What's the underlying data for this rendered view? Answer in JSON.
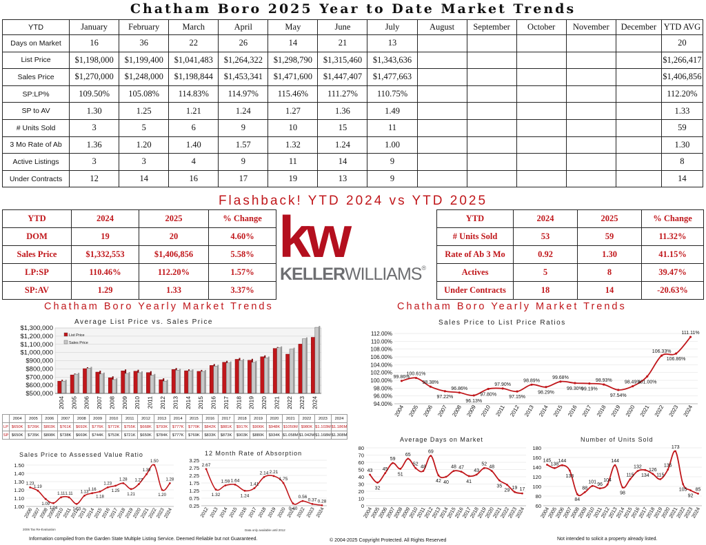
{
  "title": "Chatham Boro 2025 Year to Date Market Trends",
  "ytd_table": {
    "headers": [
      "YTD",
      "January",
      "February",
      "March",
      "April",
      "May",
      "June",
      "July",
      "August",
      "September",
      "October",
      "November",
      "December",
      "YTD AVG"
    ],
    "rows": [
      {
        "label": "Days on Market",
        "values": [
          "16",
          "36",
          "22",
          "26",
          "14",
          "21",
          "13",
          "",
          "",
          "",
          "",
          "",
          "20"
        ]
      },
      {
        "label": "List Price",
        "values": [
          "$1,198,000",
          "$1,199,400",
          "$1,041,483",
          "$1,264,322",
          "$1,298,790",
          "$1,315,460",
          "$1,343,636",
          "",
          "",
          "",
          "",
          "",
          "$1,266,417"
        ]
      },
      {
        "label": "Sales Price",
        "values": [
          "$1,270,000",
          "$1,248,000",
          "$1,198,844",
          "$1,453,341",
          "$1,471,600",
          "$1,447,407",
          "$1,477,663",
          "",
          "",
          "",
          "",
          "",
          "$1,406,856"
        ]
      },
      {
        "label": "SP:LP%",
        "values": [
          "109.50%",
          "105.08%",
          "114.83%",
          "114.97%",
          "115.46%",
          "111.27%",
          "110.75%",
          "",
          "",
          "",
          "",
          "",
          "112.20%"
        ]
      },
      {
        "label": "SP to AV",
        "values": [
          "1.30",
          "1.25",
          "1.21",
          "1.24",
          "1.27",
          "1.36",
          "1.49",
          "",
          "",
          "",
          "",
          "",
          "1.33"
        ]
      },
      {
        "label": "# Units Sold",
        "values": [
          "3",
          "5",
          "6",
          "9",
          "10",
          "15",
          "11",
          "",
          "",
          "",
          "",
          "",
          "59"
        ]
      },
      {
        "label": "3 Mo Rate of Ab",
        "values": [
          "1.36",
          "1.20",
          "1.40",
          "1.57",
          "1.32",
          "1.24",
          "1.00",
          "",
          "",
          "",
          "",
          "",
          "1.30"
        ]
      },
      {
        "label": "Active Listings",
        "values": [
          "3",
          "3",
          "4",
          "9",
          "11",
          "14",
          "9",
          "",
          "",
          "",
          "",
          "",
          "8"
        ]
      },
      {
        "label": "Under Contracts",
        "values": [
          "12",
          "14",
          "16",
          "17",
          "19",
          "13",
          "9",
          "",
          "",
          "",
          "",
          "",
          "14"
        ]
      }
    ]
  },
  "flashback": {
    "title": "Flashback!  YTD 2024 vs YTD 2025",
    "left": {
      "headers": [
        "YTD",
        "2024",
        "2025",
        "% Change"
      ],
      "rows": [
        [
          "DOM",
          "19",
          "20",
          "4.60%"
        ],
        [
          "Sales Price",
          "$1,332,553",
          "$1,406,856",
          "5.58%"
        ],
        [
          "LP:SP",
          "110.46%",
          "112.20%",
          "1.57%"
        ],
        [
          "SP:AV",
          "1.29",
          "1.33",
          "3.37%"
        ]
      ]
    },
    "right": {
      "headers": [
        "YTD",
        "2024",
        "2025",
        "% Change"
      ],
      "rows": [
        [
          "# Units Sold",
          "53",
          "59",
          "11.32%"
        ],
        [
          "Rate of Ab 3 Mo",
          "0.92",
          "1.30",
          "41.15%"
        ],
        [
          "Actives",
          "5",
          "8",
          "39.47%"
        ],
        [
          "Under Contracts",
          "18",
          "14",
          "-20.63%"
        ]
      ]
    }
  },
  "logo": {
    "mark": "kw",
    "text_bold": "KELLER",
    "text_regular": "WILLIAMS",
    "reg": "®"
  },
  "section_titles": {
    "left": "Chatham Boro Yearly Market Trends",
    "right": "Chatham Boro Yearly Market Trends"
  },
  "colors": {
    "red": "#c0161a",
    "gray": "#c8c8c8"
  },
  "lpsp_table": {
    "years": [
      "2004",
      "2005",
      "2006",
      "2007",
      "2008",
      "2009",
      "2010",
      "2011",
      "2012",
      "2013",
      "2014",
      "2015",
      "2016",
      "2017",
      "2018",
      "2019",
      "2020",
      "2021",
      "2022",
      "2023",
      "2024"
    ],
    "lp_label": "LP",
    "sp_label": "SP",
    "lp": [
      "$650K",
      "$726K",
      "$803K",
      "$761K",
      "$692K",
      "$776K",
      "$772K",
      "$755K",
      "$668K",
      "$793K",
      "$777K",
      "$770K",
      "$842K",
      "$881K",
      "$917K",
      "$906K",
      "$948K",
      "$1050M",
      "$980K",
      "$1.103M",
      "$1.186M"
    ],
    "sp": [
      "$650K",
      "$735K",
      "$808K",
      "$738K",
      "$669K",
      "$744K",
      "$753K",
      "$721K",
      "$650K",
      "$784K",
      "$777K",
      "$769K",
      "$833K",
      "$873K",
      "$903K",
      "$880K",
      "$934K",
      "$1.058M",
      "$1.042M",
      "$1.168M",
      "$1.308M"
    ]
  },
  "chart_data": [
    {
      "id": "list-vs-sales",
      "type": "bar",
      "title": "Average List Price vs. Sales Price",
      "categories": [
        "2004",
        "2005",
        "2006",
        "2007",
        "2008",
        "2009",
        "2010",
        "2011",
        "2012",
        "2013",
        "2014",
        "2015",
        "2016",
        "2017",
        "2018",
        "2019",
        "2020",
        "2021",
        "2022",
        "2023",
        "2024"
      ],
      "series": [
        {
          "name": "List Price",
          "color": "#c0161a",
          "values": [
            650000,
            726000,
            803000,
            761000,
            692000,
            776000,
            772000,
            755000,
            668000,
            793000,
            777000,
            770000,
            842000,
            881000,
            917000,
            906000,
            948000,
            1050000,
            980000,
            1103000,
            1186000
          ]
        },
        {
          "name": "Sales Price",
          "color": "#c8c8c8",
          "values": [
            650000,
            735000,
            808000,
            738000,
            669000,
            744000,
            753000,
            721000,
            650000,
            784000,
            777000,
            769000,
            833000,
            873000,
            903000,
            880000,
            934000,
            1058000,
            1042000,
            1168000,
            1308000
          ]
        }
      ],
      "yticks": [
        "$500,000",
        "$600,000",
        "$700,000",
        "$800,000",
        "$900,000",
        "$1,000,000",
        "$1,100,000",
        "$1,200,000",
        "$1,300,000"
      ],
      "ylim": [
        500000,
        1300000
      ],
      "legend": "top-left"
    },
    {
      "id": "sp-lp-ratio",
      "type": "line",
      "title": "Sales Price to List Price Ratios",
      "x": [
        "2004",
        "2005",
        "2006",
        "2007",
        "2008",
        "2009",
        "2010",
        "2011",
        "2012",
        "2013",
        "2014",
        "2015",
        "2016",
        "2017",
        "2018",
        "2019",
        "2020",
        "2021",
        "2022",
        "2023",
        "2024"
      ],
      "values": [
        99.86,
        100.61,
        98.38,
        97.22,
        96.86,
        96.13,
        97.8,
        97.9,
        97.15,
        98.89,
        98.29,
        99.68,
        99.3,
        99.19,
        98.93,
        97.54,
        98.49,
        101.0,
        106.33,
        106.86,
        111.11
      ],
      "labels": [
        "99.86%",
        "100.61%",
        "98.38%",
        "97.22%",
        "96.86%",
        "96.13%",
        "97.80%",
        "97.90%",
        "97.15%",
        "98.89%",
        "98.29%",
        "99.68%",
        "99.30%",
        "99.19%",
        "98.93%",
        "97.54%",
        "98.49%",
        "101.00%",
        "106.33%",
        "106.86%",
        "111.11%"
      ],
      "yticks": [
        "94.00%",
        "96.00%",
        "98.00%",
        "100.00%",
        "102.00%",
        "104.00%",
        "106.00%",
        "108.00%",
        "110.00%",
        "112.00%"
      ],
      "ylim": [
        94,
        112
      ]
    },
    {
      "id": "sp-to-av",
      "type": "line",
      "title": "Sales Price to Assessed Value Ratio",
      "x": [
        "2006",
        "2007",
        "2008",
        "2009",
        "2010",
        "2011",
        "2012",
        "2013",
        "2014",
        "2015",
        "2016",
        "2017",
        "2018",
        "2019",
        "2020",
        "2021",
        "2022",
        "2023",
        "2024"
      ],
      "values": [
        1.23,
        1.19,
        1.09,
        1.04,
        1.11,
        1.11,
        1.03,
        1.13,
        1.16,
        1.18,
        1.23,
        1.25,
        1.28,
        1.21,
        1.27,
        1.39,
        1.5,
        1.2,
        1.28
      ],
      "yticks": [
        "1.00",
        "1.10",
        "1.20",
        "1.30",
        "1.40",
        "1.50"
      ],
      "ylim": [
        1.0,
        1.5
      ]
    },
    {
      "id": "rate-absorption",
      "type": "line",
      "title": "12 Month Rate of Absorption",
      "x": [
        "2012",
        "2013",
        "2014",
        "2015",
        "2016",
        "2017",
        "2018",
        "2019",
        "2020",
        "2021",
        "2022",
        "2023",
        "2024"
      ],
      "values": [
        2.67,
        1.32,
        1.59,
        1.64,
        1.24,
        1.41,
        2.14,
        2.21,
        1.75,
        0.4,
        0.56,
        0.37,
        0.28
      ],
      "yticks": [
        "0.25",
        "0.75",
        "1.25",
        "1.75",
        "2.25",
        "2.75",
        "3.25"
      ],
      "ylim": [
        0.25,
        3.25
      ]
    },
    {
      "id": "days-on-market",
      "type": "line",
      "title": "Average Days on Market",
      "x": [
        "2004",
        "2005",
        "2006",
        "2007",
        "2008",
        "2009",
        "2010",
        "2011",
        "2012",
        "2013",
        "2014",
        "2015",
        "2016",
        "2017",
        "2018",
        "2019",
        "2020",
        "2021",
        "2022",
        "2023",
        "2024"
      ],
      "values": [
        43,
        32,
        45,
        59,
        51,
        65,
        52,
        48,
        69,
        42,
        40,
        48,
        47,
        41,
        43,
        52,
        48,
        35,
        29,
        19,
        17
      ],
      "yticks": [
        "0",
        "10",
        "20",
        "30",
        "40",
        "50",
        "60",
        "70",
        "80"
      ],
      "ylim": [
        0,
        80
      ]
    },
    {
      "id": "units-sold",
      "type": "line",
      "title": "Number of Units Sold",
      "x": [
        "2004",
        "2005",
        "2006",
        "2007",
        "2008",
        "2009",
        "2010",
        "2011",
        "2012",
        "2013",
        "2014",
        "2015",
        "2016",
        "2017",
        "2018",
        "2019",
        "2020",
        "2021",
        "2022",
        "2023",
        "2024"
      ],
      "values": [
        145,
        138,
        144,
        133,
        84,
        88,
        101,
        96,
        104,
        144,
        98,
        115,
        132,
        134,
        126,
        115,
        135,
        173,
        105,
        92,
        85
      ],
      "yticks": [
        "60",
        "80",
        "100",
        "120",
        "140",
        "160",
        "180"
      ],
      "ylim": [
        60,
        180
      ]
    }
  ],
  "notes": {
    "source_left": "Information compiled from the Garden State Multiple Listing Service.  Deemed Reliable but not Guaranteed.",
    "copyright": "© 2004-2025 Copyright Protected.  All Rights Reserved",
    "solicit": "Not intended to solicit a property already listed.",
    "tiny_left": "2006 Tax Re-Evaluation",
    "tiny_mid": "Data only available until 2012"
  }
}
